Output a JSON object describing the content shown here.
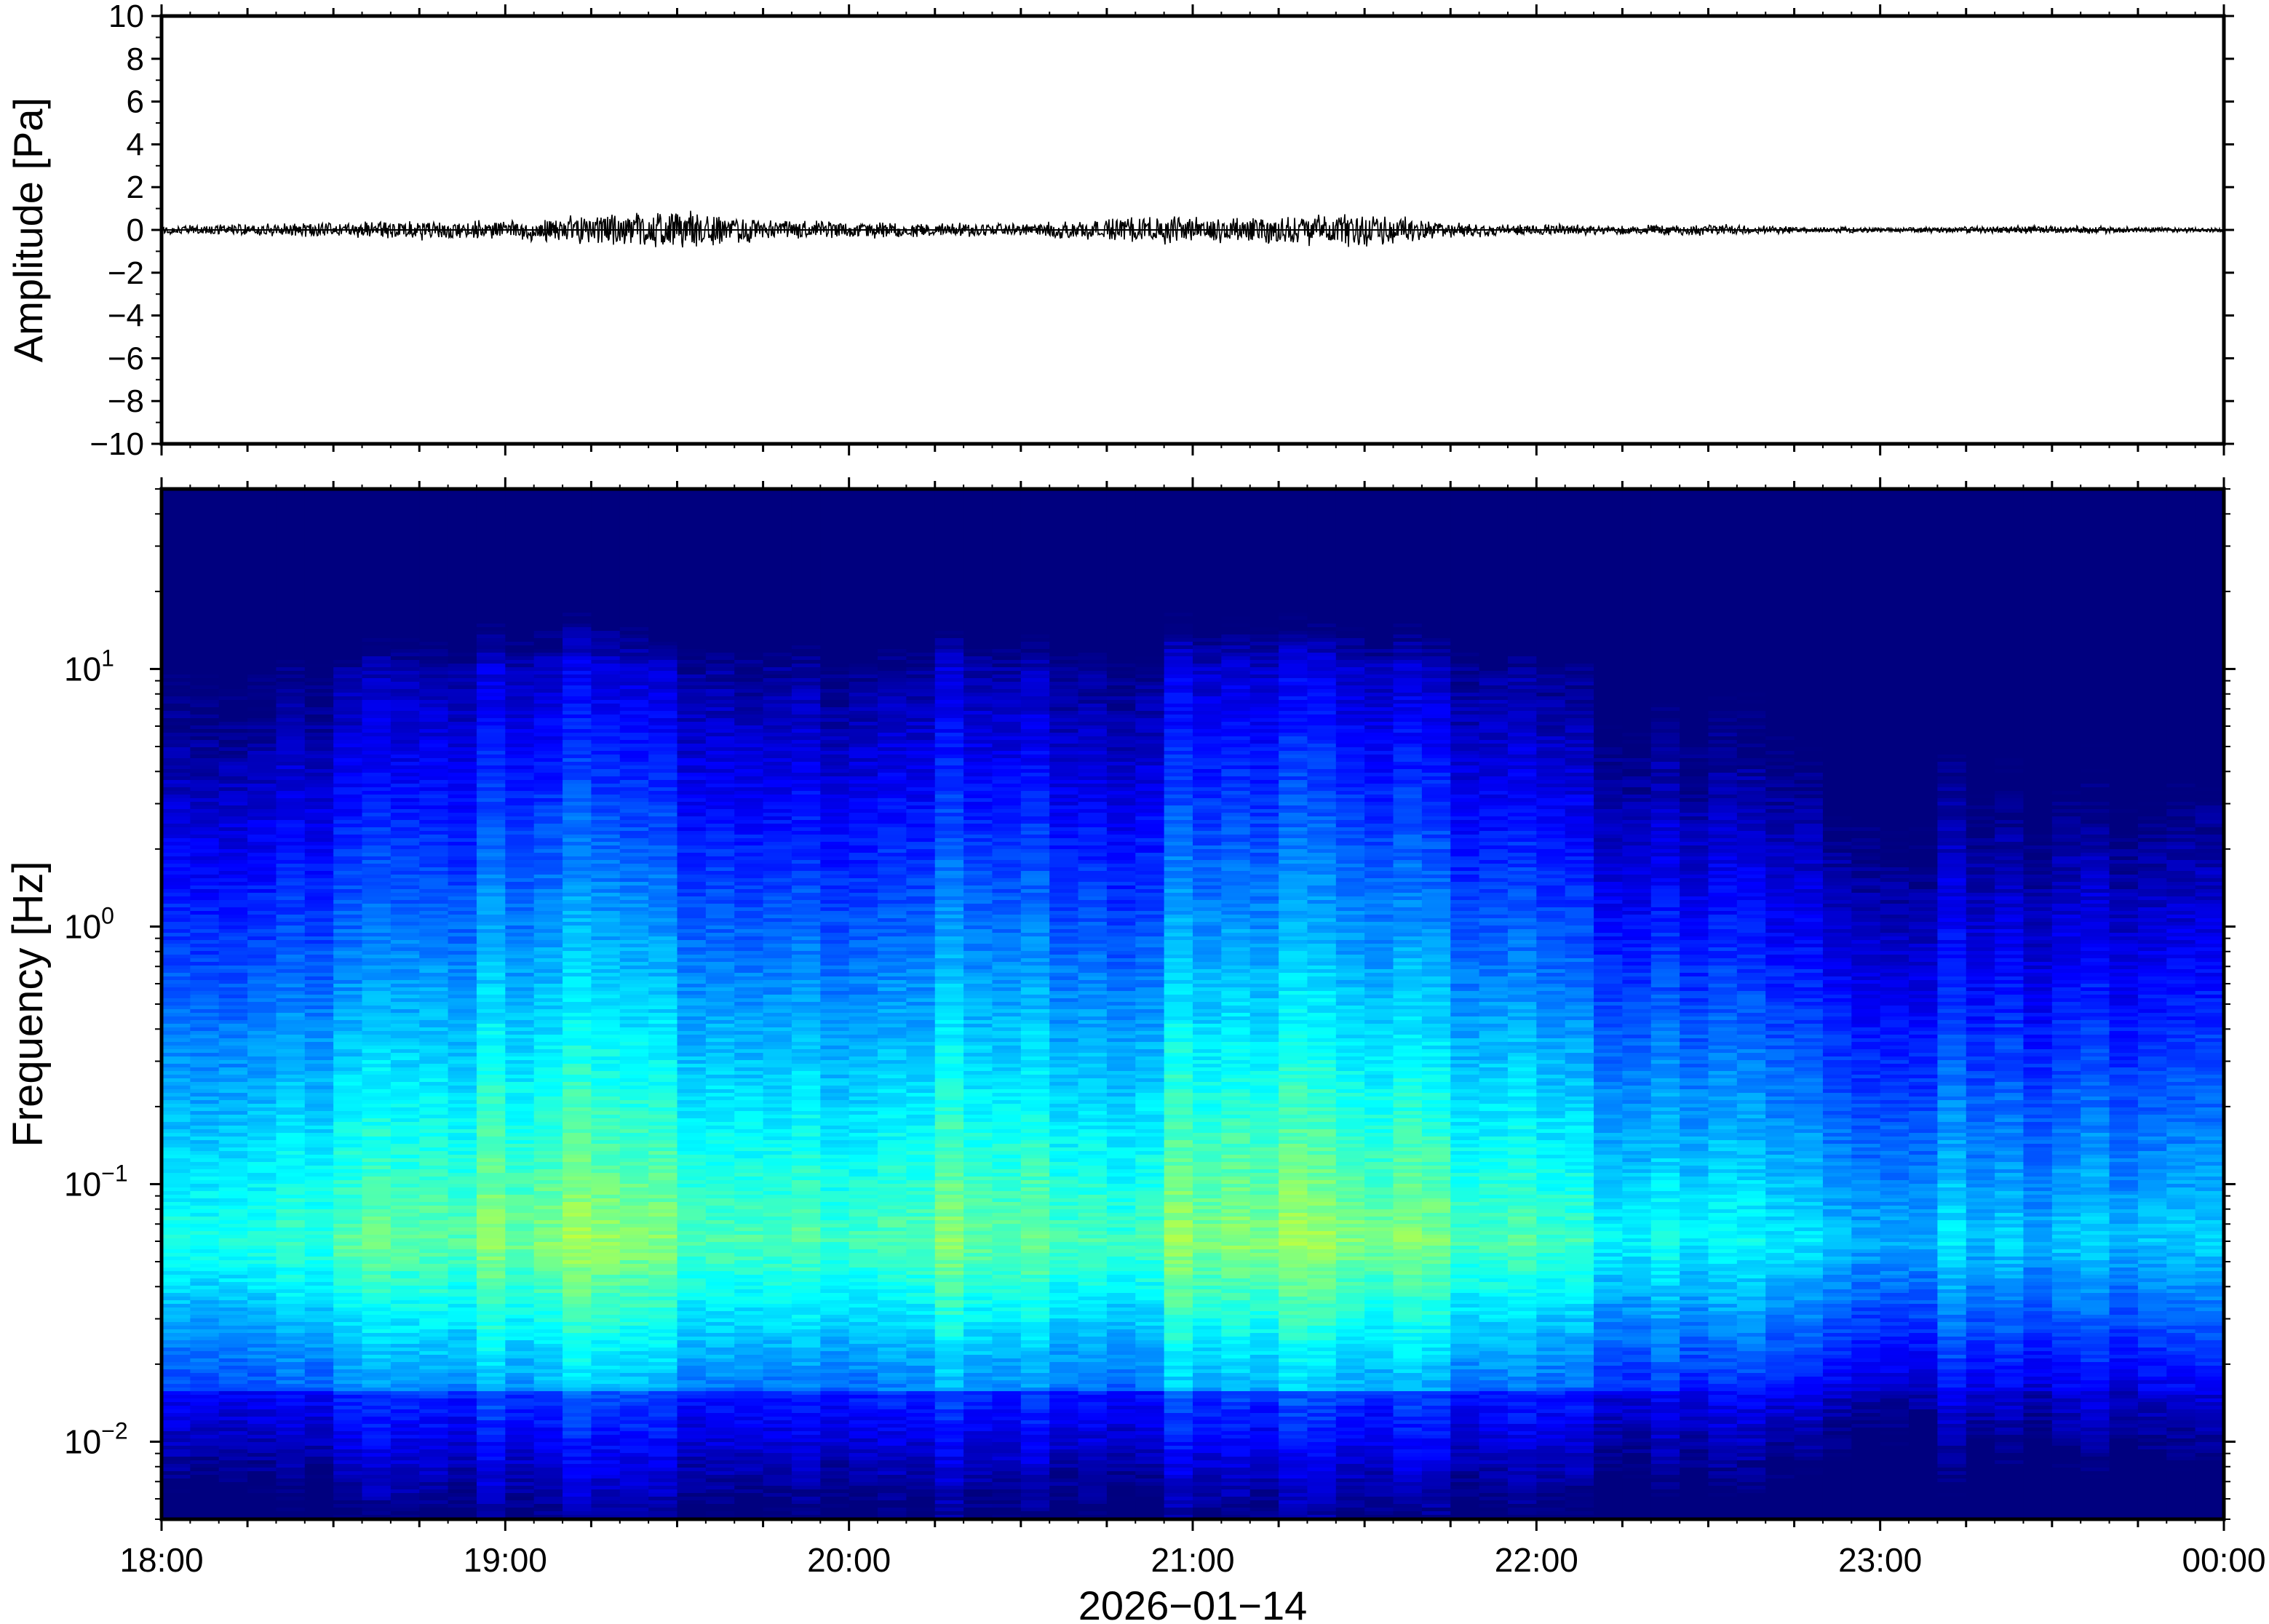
{
  "chart_data": [
    {
      "type": "line",
      "ylabel": "Amplitude [Pa]",
      "ylim": [
        -10,
        10
      ],
      "yticks": [
        {
          "value": 10,
          "label": "10"
        },
        {
          "value": 8,
          "label": "8"
        },
        {
          "value": 6,
          "label": "6"
        },
        {
          "value": 4,
          "label": "4"
        },
        {
          "value": 2,
          "label": "2"
        },
        {
          "value": 0,
          "label": "0"
        },
        {
          "value": -2,
          "label": "−2"
        },
        {
          "value": -4,
          "label": "−4"
        },
        {
          "value": -6,
          "label": "−6"
        },
        {
          "value": -8,
          "label": "−8"
        },
        {
          "value": -10,
          "label": "−10"
        }
      ],
      "xlim": [
        "18:00",
        "00:00"
      ],
      "grid": false,
      "series": [
        {
          "x": [
            "18:00",
            "18:15",
            "18:30",
            "18:45",
            "19:00",
            "19:15",
            "19:30",
            "19:45",
            "20:00",
            "20:15",
            "20:30",
            "20:45",
            "21:00",
            "21:15",
            "21:30",
            "21:45",
            "22:00",
            "22:15",
            "22:30",
            "22:45",
            "23:00",
            "23:15",
            "23:30",
            "23:45",
            "00:00"
          ],
          "envelope": [
            0.15,
            0.2,
            0.25,
            0.35,
            0.3,
            0.55,
            0.7,
            0.35,
            0.3,
            0.25,
            0.2,
            0.4,
            0.5,
            0.45,
            0.6,
            0.25,
            0.2,
            0.15,
            0.2,
            0.12,
            0.1,
            0.12,
            0.15,
            0.1,
            0.08
          ],
          "color": "#000000"
        }
      ]
    },
    {
      "type": "heatmap",
      "ylabel": "Frequency [Hz]",
      "xlabel": "2026−01−14",
      "yscale": "log",
      "ylim": [
        0.005,
        50
      ],
      "yticks": [
        {
          "value": 10,
          "base": "10",
          "exp": "1"
        },
        {
          "value": 1,
          "base": "10",
          "exp": "0"
        },
        {
          "value": 0.1,
          "base": "10",
          "exp": "−1"
        },
        {
          "value": 0.01,
          "base": "10",
          "exp": "−2"
        }
      ],
      "xlim": [
        "18:00",
        "00:00"
      ],
      "xticks": [
        "18:00",
        "19:00",
        "20:00",
        "21:00",
        "22:00",
        "23:00",
        "00:00"
      ],
      "colormap": [
        "#00007f",
        "#0000ff",
        "#007fff",
        "#00ffff",
        "#7fff7f",
        "#ffff00",
        "#ff7f00",
        "#ff0000"
      ],
      "time_columns": 72,
      "activity_profile": [
        0.45,
        0.5,
        0.55,
        0.6,
        0.62,
        0.7,
        0.78,
        0.8,
        0.72,
        0.66,
        0.62,
        0.6,
        0.58,
        0.74,
        0.7,
        0.6,
        0.62,
        0.82,
        0.86,
        0.84,
        0.8,
        0.7,
        0.62,
        0.5,
        0.4,
        0.35,
        0.3,
        0.25,
        0.22,
        0.2,
        0.2,
        0.18,
        0.16,
        0.18,
        0.2
      ],
      "grid": false
    }
  ]
}
